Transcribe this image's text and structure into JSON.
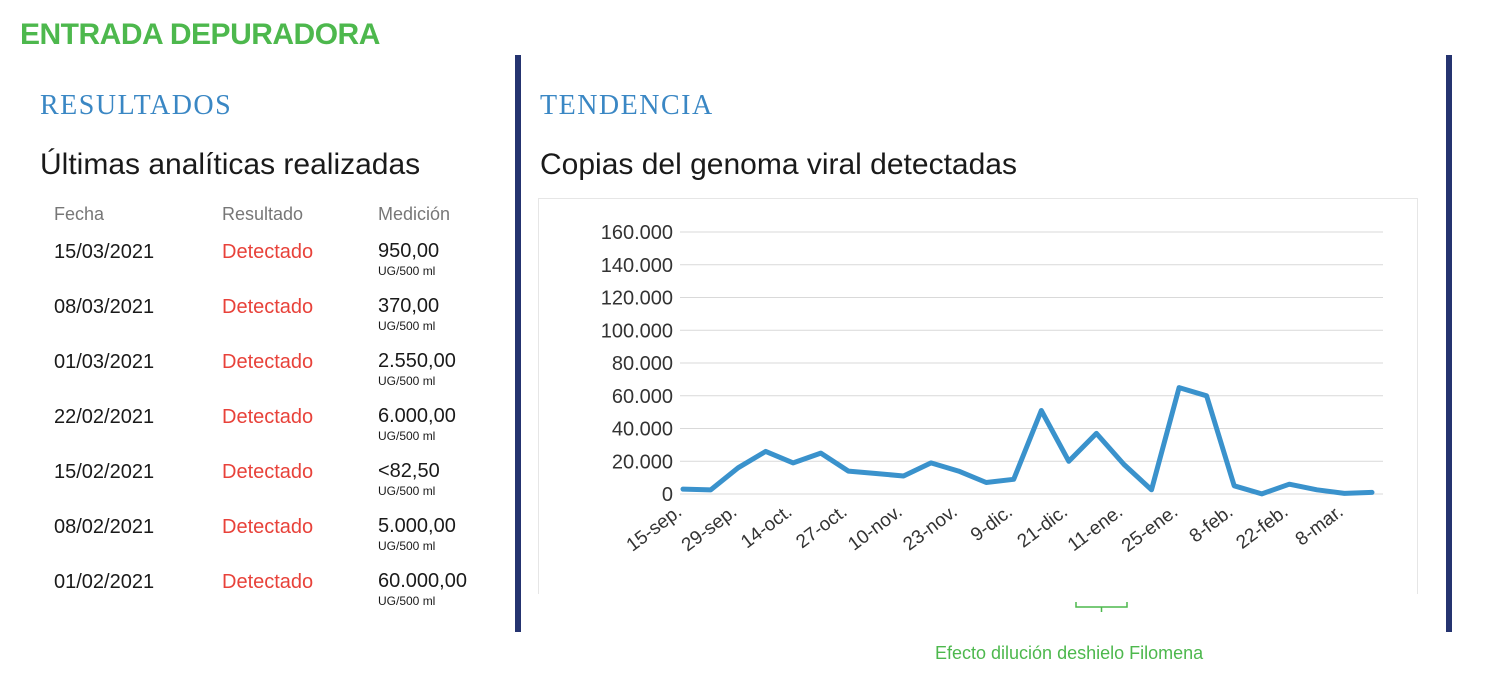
{
  "header": {
    "title": "ENTRADA DEPURADORA"
  },
  "results": {
    "section_title": "RESULTADOS",
    "subtitle": "Últimas analíticas realizadas",
    "columns": [
      "Fecha",
      "Resultado",
      "Medición"
    ],
    "rows": [
      {
        "date": "15/03/2021",
        "status": "Detectado",
        "value": "950,00",
        "unit": "UG/500 ml"
      },
      {
        "date": "08/03/2021",
        "status": "Detectado",
        "value": "370,00",
        "unit": "UG/500 ml"
      },
      {
        "date": "01/03/2021",
        "status": "Detectado",
        "value": "2.550,00",
        "unit": "UG/500 ml"
      },
      {
        "date": "22/02/2021",
        "status": "Detectado",
        "value": "6.000,00",
        "unit": "UG/500 ml"
      },
      {
        "date": "15/02/2021",
        "status": "Detectado",
        "value": "<82,50",
        "unit": "UG/500 ml"
      },
      {
        "date": "08/02/2021",
        "status": "Detectado",
        "value": "5.000,00",
        "unit": "UG/500 ml"
      },
      {
        "date": "01/02/2021",
        "status": "Detectado",
        "value": "60.000,00",
        "unit": "UG/500 ml"
      }
    ]
  },
  "trend": {
    "section_title": "TENDENCIA",
    "subtitle": "Copias del genoma viral detectadas",
    "annotation": "Efecto dilución deshielo Filomena"
  },
  "colors": {
    "header_green": "#4db84d",
    "section_blue": "#3a87c4",
    "divider_navy": "#253470",
    "status_red": "#e8423a",
    "line_blue": "#3a92cc",
    "grid": "#d9d9d9",
    "annotation_green": "#4db84d"
  },
  "chart_data": {
    "type": "line",
    "title": "Copias del genoma viral detectadas",
    "xlabel": "",
    "ylabel": "",
    "ylim": [
      0,
      160000
    ],
    "yticks": [
      0,
      20000,
      40000,
      60000,
      80000,
      100000,
      120000,
      140000,
      160000
    ],
    "ytick_labels": [
      "0",
      "20.000",
      "40.000",
      "60.000",
      "80.000",
      "100.000",
      "120.000",
      "140.000",
      "160.000"
    ],
    "grid": true,
    "x_tick_labels": [
      "15-sep.",
      "29-sep.",
      "14-oct.",
      "27-oct.",
      "10-nov.",
      "23-nov.",
      "9-dic.",
      "21-dic.",
      "11-ene.",
      "25-ene.",
      "8-feb.",
      "22-feb.",
      "8-mar."
    ],
    "series": [
      {
        "values": [
          3000,
          2500,
          16000,
          26000,
          19000,
          25000,
          14000,
          12500,
          11000,
          19000,
          14000,
          7000,
          9000,
          51000,
          20000,
          37000,
          18000,
          2550,
          65000,
          60000,
          5000,
          82.5,
          6000,
          2550,
          370,
          950
        ]
      }
    ]
  }
}
